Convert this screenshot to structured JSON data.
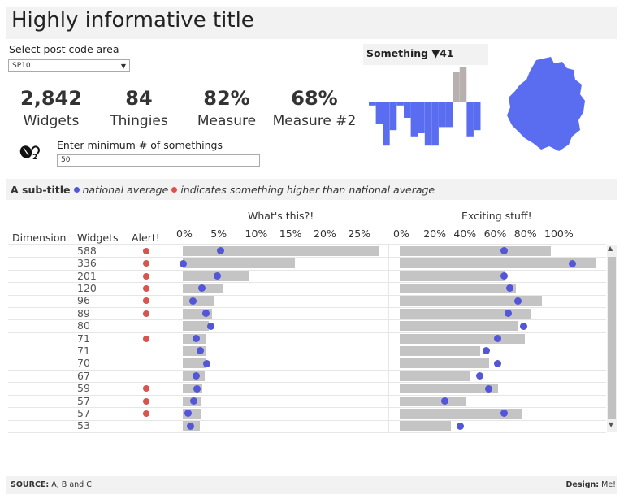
{
  "title": "Highly informative title",
  "select": {
    "label": "Select post code area",
    "value": "SP10"
  },
  "kpis": [
    {
      "value": "2,842",
      "label": "Widgets"
    },
    {
      "value": "84",
      "label": "Thingies"
    },
    {
      "value": "82%",
      "label": "Measure"
    },
    {
      "value": "68%",
      "label": "Measure #2"
    }
  ],
  "min_input": {
    "label": "Enter minimum # of somethings",
    "value": "50"
  },
  "something": {
    "label": "Something",
    "arrow": "▼",
    "value": "41"
  },
  "subtitle": {
    "bold": "A sub-title",
    "national": "national average",
    "higher": "indicates something higher than national average"
  },
  "table": {
    "headers": {
      "dimension": "Dimension",
      "widgets": "Widgets",
      "alert": "Alert!",
      "whats_this": "What's this?!",
      "exciting": "Exciting stuff!"
    },
    "axis1_ticks": [
      "0%",
      "5%",
      "10%",
      "15%",
      "20%",
      "25%"
    ],
    "axis2_ticks": [
      "0%",
      "20%",
      "40%",
      "60%",
      "80%",
      "100%"
    ],
    "rows": [
      {
        "widgets": "588",
        "alert": true,
        "bar1": 28.5,
        "dot1": 5.5,
        "bar2": 100,
        "dot2": 69
      },
      {
        "widgets": "336",
        "alert": true,
        "bar1": 16.3,
        "dot1": 0,
        "bar2": 130,
        "dot2": 114
      },
      {
        "widgets": "201",
        "alert": true,
        "bar1": 9.7,
        "dot1": 5.0,
        "bar2": 70,
        "dot2": 69
      },
      {
        "widgets": "120",
        "alert": true,
        "bar1": 5.8,
        "dot1": 2.8,
        "bar2": 77,
        "dot2": 73
      },
      {
        "widgets": "96",
        "alert": true,
        "bar1": 4.6,
        "dot1": 1.5,
        "bar2": 94,
        "dot2": 78
      },
      {
        "widgets": "89",
        "alert": true,
        "bar1": 4.3,
        "dot1": 3.4,
        "bar2": 87,
        "dot2": 72
      },
      {
        "widgets": "80",
        "alert": false,
        "bar1": 3.8,
        "dot1": 4.1,
        "bar2": 78,
        "dot2": 82
      },
      {
        "widgets": "71",
        "alert": true,
        "bar1": 3.4,
        "dot1": 1.9,
        "bar2": 83,
        "dot2": 65
      },
      {
        "widgets": "71",
        "alert": false,
        "bar1": 3.4,
        "dot1": 2.6,
        "bar2": 53,
        "dot2": 57
      },
      {
        "widgets": "70",
        "alert": false,
        "bar1": 3.3,
        "dot1": 3.5,
        "bar2": 59,
        "dot2": 65
      },
      {
        "widgets": "67",
        "alert": false,
        "bar1": 3.2,
        "dot1": 1.9,
        "bar2": 47,
        "dot2": 53
      },
      {
        "widgets": "59",
        "alert": true,
        "bar1": 2.8,
        "dot1": 2.1,
        "bar2": 65,
        "dot2": 59
      },
      {
        "widgets": "57",
        "alert": true,
        "bar1": 2.7,
        "dot1": 1.6,
        "bar2": 44,
        "dot2": 30
      },
      {
        "widgets": "57",
        "alert": true,
        "bar1": 2.7,
        "dot1": 0.8,
        "bar2": 81,
        "dot2": 69
      },
      {
        "widgets": "53",
        "alert": false,
        "bar1": 2.5,
        "dot1": 1.1,
        "bar2": 34,
        "dot2": 40
      }
    ]
  },
  "mini_chart": {
    "type": "bar",
    "values": [
      -1,
      -7,
      -14,
      -9,
      -1,
      -5,
      -11,
      -10,
      -14,
      -14,
      -8,
      -8,
      10,
      16,
      -11,
      -9
    ],
    "colors": {
      "negative": "#5a6cf0",
      "positive": "#b8b0ae"
    }
  },
  "footer": {
    "source_label": "SOURCE:",
    "source_text": "A, B and C",
    "design_label": "Design:",
    "design_text": "Me!"
  },
  "colors": {
    "accent_blue": "#5456d8",
    "alert_red": "#d9534f",
    "bar_grey": "#c4c4c4",
    "map_fill": "#5a6cf0"
  }
}
